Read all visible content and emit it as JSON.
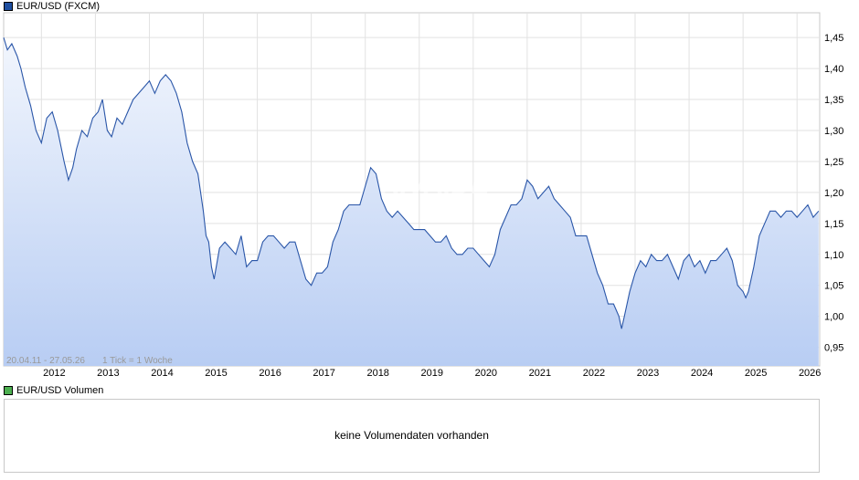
{
  "legend_main": {
    "label": "EUR/USD (FXCM)",
    "color": "#1f4fa0"
  },
  "legend_volume": {
    "label": "EUR/USD Volumen",
    "color": "#4caf50"
  },
  "range_info": "20.04.11 - 27.05.26",
  "tick_info": "1 Tick = 1 Woche",
  "watermark": "ARIVA.DE",
  "volume_message": "keine Volumendaten vorhanden",
  "chart_data": {
    "type": "area",
    "title": "",
    "xlabel": "",
    "ylabel": "",
    "line_color": "#2a56a8",
    "fill_top_color": "#f2f6fd",
    "fill_bottom_color": "#b8cdf3",
    "grid": true,
    "ylim": [
      0.92,
      1.49
    ],
    "xlim": [
      2011.3,
      2026.42
    ],
    "x_ticks": [
      2012,
      2013,
      2014,
      2015,
      2016,
      2017,
      2018,
      2019,
      2020,
      2021,
      2022,
      2023,
      2024,
      2025,
      2026
    ],
    "x_tick_labels": [
      "2012",
      "2013",
      "2014",
      "2015",
      "2016",
      "2017",
      "2018",
      "2019",
      "2020",
      "2021",
      "2022",
      "2023",
      "2024",
      "2025",
      "2026"
    ],
    "y_ticks": [
      0.95,
      1.0,
      1.05,
      1.1,
      1.15,
      1.2,
      1.25,
      1.3,
      1.35,
      1.4,
      1.45
    ],
    "y_tick_labels": [
      "0,95",
      "1,00",
      "1,05",
      "1,10",
      "1,15",
      "1,20",
      "1,25",
      "1,30",
      "1,35",
      "1,40",
      "1,45"
    ],
    "series": [
      {
        "x": [
          2011.3,
          2011.37,
          2011.45,
          2011.55,
          2011.62,
          2011.7,
          2011.8,
          2011.9,
          2012.0,
          2012.1,
          2012.2,
          2012.3,
          2012.42,
          2012.5,
          2012.58,
          2012.65,
          2012.75,
          2012.85,
          2012.95,
          2013.05,
          2013.13,
          2013.22,
          2013.3,
          2013.4,
          2013.5,
          2013.6,
          2013.7,
          2013.8,
          2013.9,
          2014.0,
          2014.1,
          2014.2,
          2014.3,
          2014.4,
          2014.5,
          2014.6,
          2014.7,
          2014.8,
          2014.9,
          2015.0,
          2015.05,
          2015.1,
          2015.15,
          2015.2,
          2015.3,
          2015.4,
          2015.5,
          2015.6,
          2015.7,
          2015.8,
          2015.9,
          2016.0,
          2016.1,
          2016.2,
          2016.3,
          2016.4,
          2016.5,
          2016.6,
          2016.7,
          2016.8,
          2016.9,
          2017.0,
          2017.1,
          2017.2,
          2017.3,
          2017.4,
          2017.5,
          2017.6,
          2017.7,
          2017.8,
          2017.9,
          2018.0,
          2018.1,
          2018.2,
          2018.3,
          2018.4,
          2018.5,
          2018.6,
          2018.7,
          2018.8,
          2018.9,
          2019.0,
          2019.1,
          2019.2,
          2019.3,
          2019.4,
          2019.5,
          2019.6,
          2019.7,
          2019.8,
          2019.9,
          2020.0,
          2020.1,
          2020.2,
          2020.3,
          2020.4,
          2020.5,
          2020.6,
          2020.7,
          2020.8,
          2020.9,
          2021.0,
          2021.1,
          2021.2,
          2021.3,
          2021.4,
          2021.5,
          2021.6,
          2021.7,
          2021.8,
          2021.9,
          2022.0,
          2022.1,
          2022.2,
          2022.3,
          2022.4,
          2022.5,
          2022.6,
          2022.7,
          2022.75,
          2022.8,
          2022.9,
          2023.0,
          2023.1,
          2023.2,
          2023.3,
          2023.4,
          2023.5,
          2023.6,
          2023.7,
          2023.8,
          2023.9,
          2024.0,
          2024.1,
          2024.2,
          2024.3,
          2024.4,
          2024.5,
          2024.6,
          2024.7,
          2024.8,
          2024.9,
          2025.0,
          2025.05,
          2025.1,
          2025.2,
          2025.3,
          2025.4,
          2025.5,
          2025.6,
          2025.7,
          2025.8,
          2025.9,
          2026.0,
          2026.1,
          2026.2,
          2026.3,
          2026.4
        ],
        "values": [
          1.45,
          1.43,
          1.44,
          1.42,
          1.4,
          1.37,
          1.34,
          1.3,
          1.28,
          1.32,
          1.33,
          1.3,
          1.25,
          1.22,
          1.24,
          1.27,
          1.3,
          1.29,
          1.32,
          1.33,
          1.35,
          1.3,
          1.29,
          1.32,
          1.31,
          1.33,
          1.35,
          1.36,
          1.37,
          1.38,
          1.36,
          1.38,
          1.39,
          1.38,
          1.36,
          1.33,
          1.28,
          1.25,
          1.23,
          1.17,
          1.13,
          1.12,
          1.08,
          1.06,
          1.11,
          1.12,
          1.11,
          1.1,
          1.13,
          1.08,
          1.09,
          1.09,
          1.12,
          1.13,
          1.13,
          1.12,
          1.11,
          1.12,
          1.12,
          1.09,
          1.06,
          1.05,
          1.07,
          1.07,
          1.08,
          1.12,
          1.14,
          1.17,
          1.18,
          1.18,
          1.18,
          1.21,
          1.24,
          1.23,
          1.19,
          1.17,
          1.16,
          1.17,
          1.16,
          1.15,
          1.14,
          1.14,
          1.14,
          1.13,
          1.12,
          1.12,
          1.13,
          1.11,
          1.1,
          1.1,
          1.11,
          1.11,
          1.1,
          1.09,
          1.08,
          1.1,
          1.14,
          1.16,
          1.18,
          1.18,
          1.19,
          1.22,
          1.21,
          1.19,
          1.2,
          1.21,
          1.19,
          1.18,
          1.17,
          1.16,
          1.13,
          1.13,
          1.13,
          1.1,
          1.07,
          1.05,
          1.02,
          1.02,
          1.0,
          0.98,
          1.0,
          1.04,
          1.07,
          1.09,
          1.08,
          1.1,
          1.09,
          1.09,
          1.1,
          1.08,
          1.06,
          1.09,
          1.1,
          1.08,
          1.09,
          1.07,
          1.09,
          1.09,
          1.1,
          1.11,
          1.09,
          1.05,
          1.04,
          1.03,
          1.04,
          1.08,
          1.13,
          1.15,
          1.17,
          1.17,
          1.16,
          1.17,
          1.17,
          1.16,
          1.17,
          1.18,
          1.16,
          1.17
        ]
      }
    ]
  }
}
